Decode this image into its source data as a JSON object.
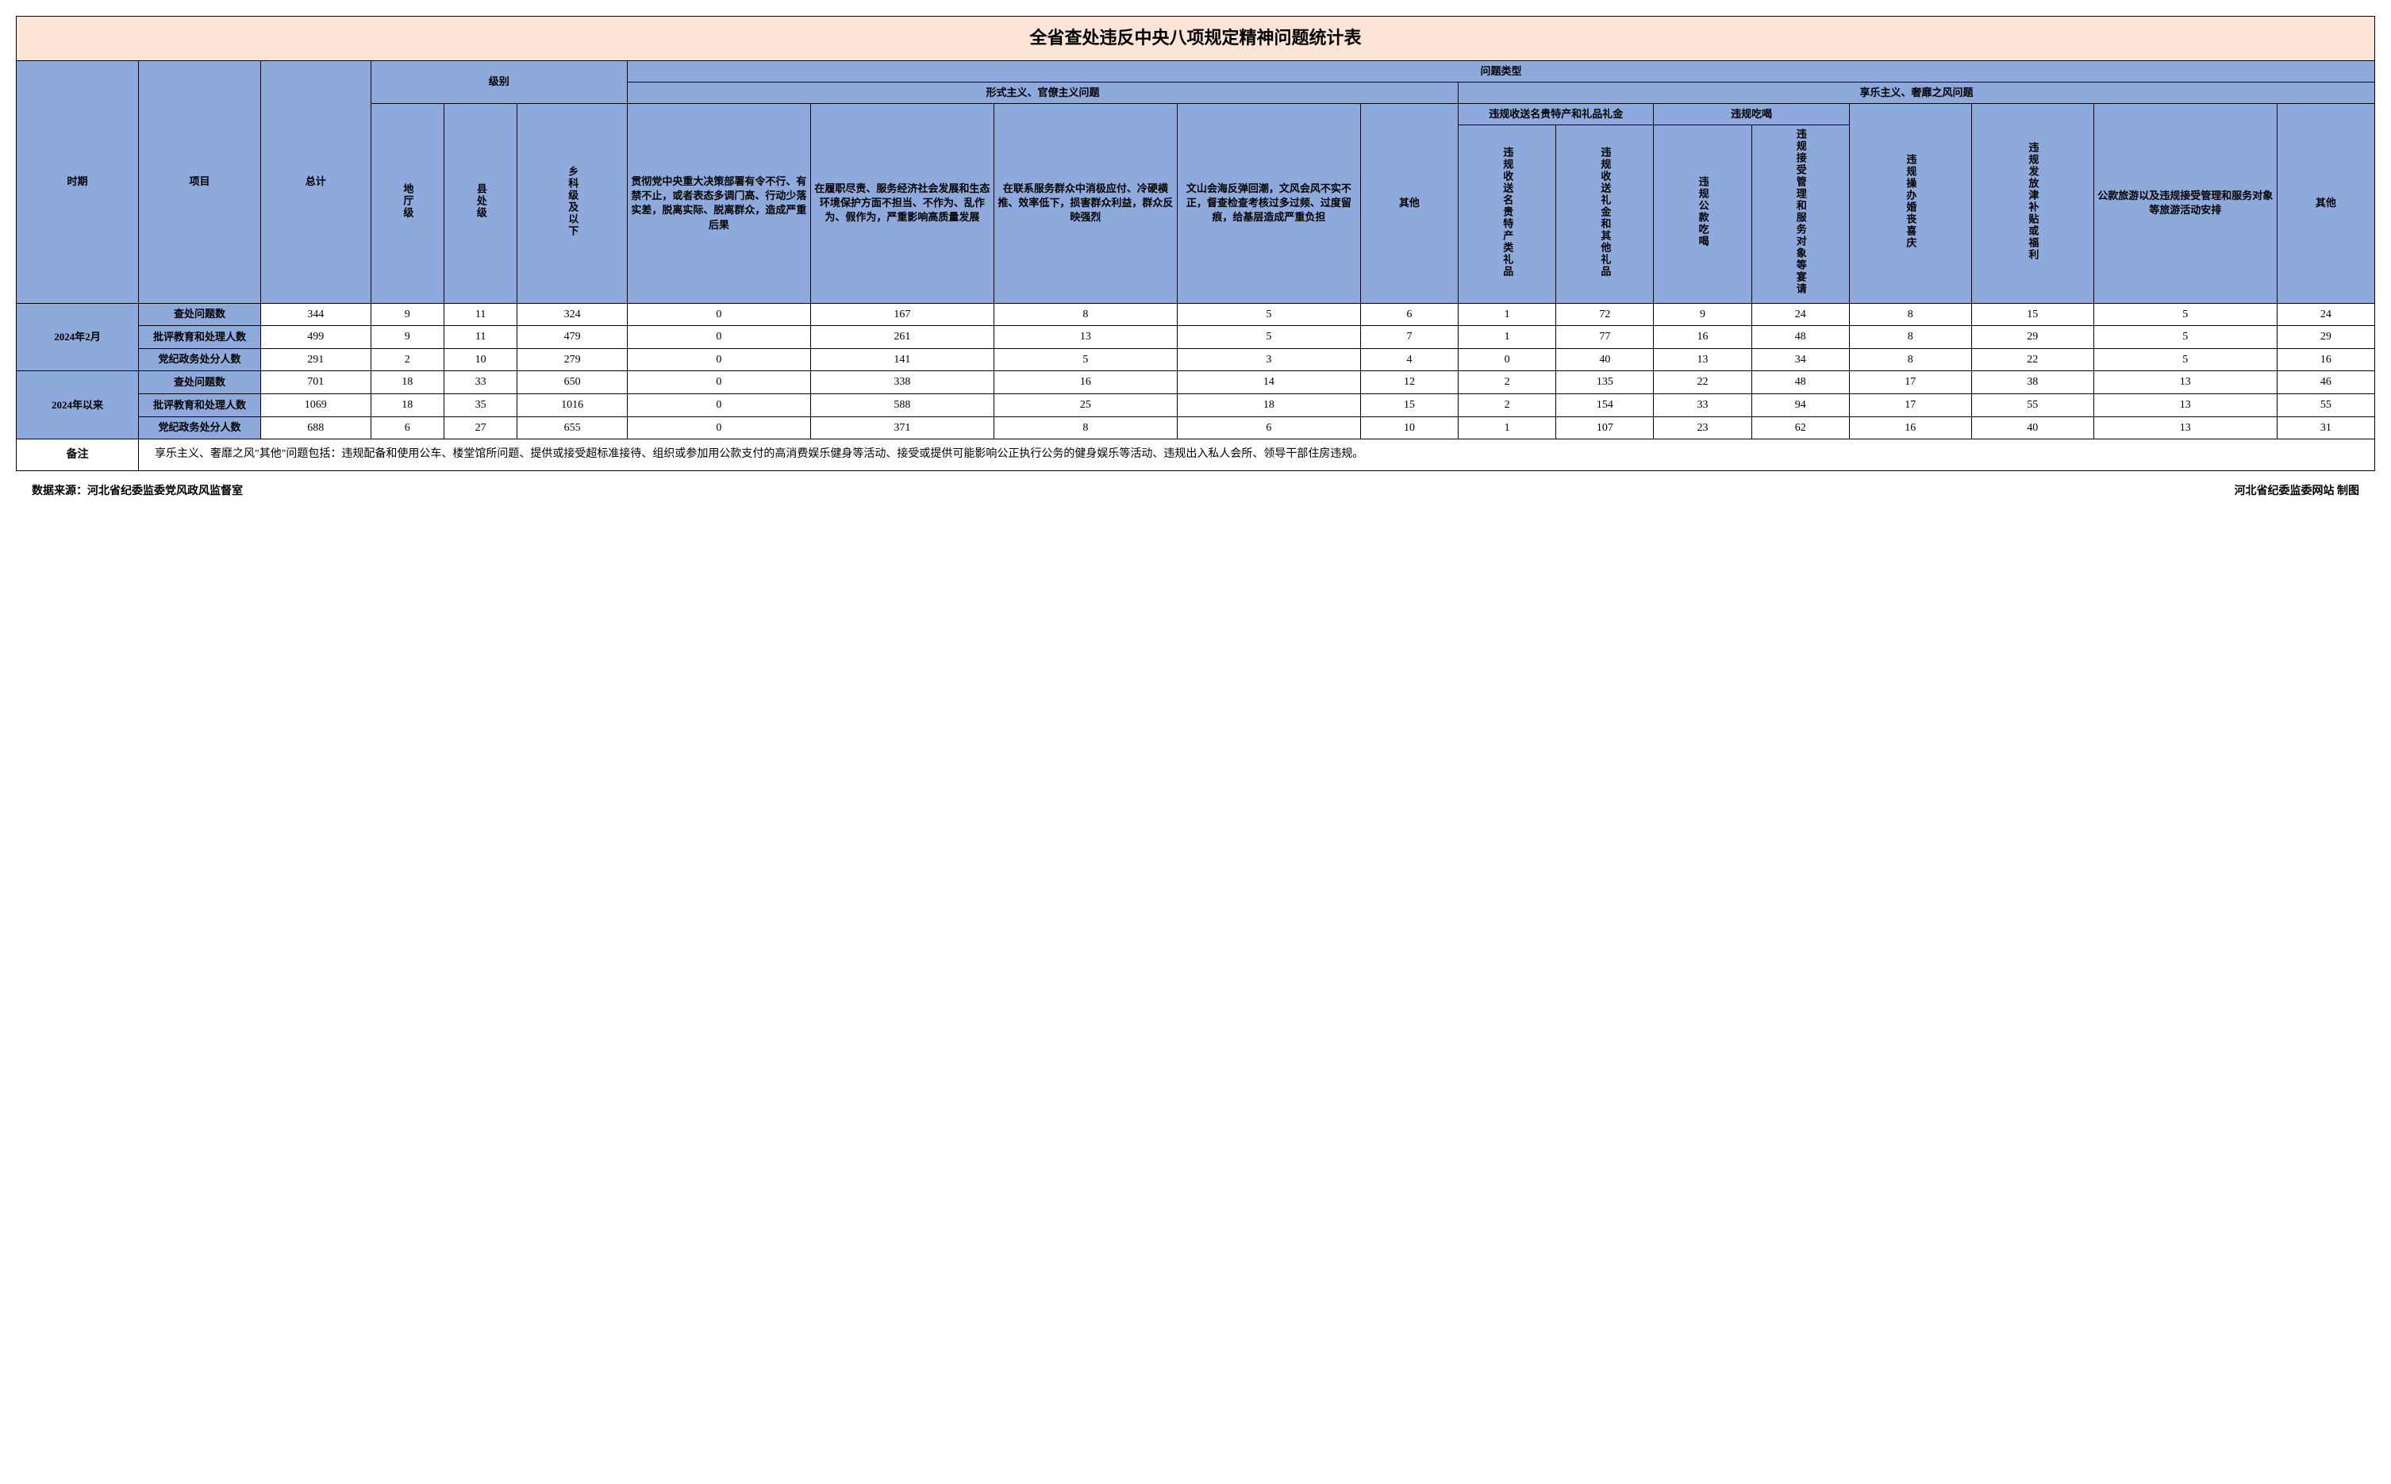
{
  "title": "全省查处违反中央八项规定精神问题统计表",
  "headers": {
    "period": "时期",
    "item": "项目",
    "total": "总计",
    "level_group": "级别",
    "level1": "地厅级",
    "level2": "县处级",
    "level3": "乡科级及以下",
    "problem_type": "问题类型",
    "formalism": "形式主义、官僚主义问题",
    "hedonism": "享乐主义、奢靡之风问题",
    "f1": "贯彻党中央重大决策部署有令不行、有禁不止，或者表态多调门高、行动少落实差，脱离实际、脱离群众，造成严重后果",
    "f2": "在履职尽责、服务经济社会发展和生态环境保护方面不担当、不作为、乱作为、假作为，严重影响高质量发展",
    "f3": "在联系服务群众中消极应付、冷硬横推、效率低下，损害群众利益，群众反映强烈",
    "f4": "文山会海反弹回潮，文风会风不实不正，督查检查考核过多过频、过度留痕，给基层造成严重负担",
    "f5": "其他",
    "h_gift_group": "违规收送名贵特产和礼品礼金",
    "h_gift1": "违规收送名贵特产类礼品",
    "h_gift2": "违规收送礼金和其他礼品",
    "h_eat_group": "违规吃喝",
    "h_eat1": "违规公款吃喝",
    "h_eat2": "违规接受管理和服务对象等宴请",
    "h3": "违规操办婚丧喜庆",
    "h4": "违规发放津补贴或福利",
    "h5": "公款旅游以及违规接受管理和服务对象等旅游活动安排",
    "h6": "其他"
  },
  "periods": [
    {
      "label": "2024年2月",
      "rows": [
        {
          "item": "查处问题数",
          "total": "344",
          "lv1": "9",
          "lv2": "11",
          "lv3": "324",
          "f1": "0",
          "f2": "167",
          "f3": "8",
          "f4": "5",
          "f5": "6",
          "hg1": "1",
          "hg2": "72",
          "he1": "9",
          "he2": "24",
          "h3": "8",
          "h4": "15",
          "h5": "5",
          "h6": "24"
        },
        {
          "item": "批评教育和处理人数",
          "total": "499",
          "lv1": "9",
          "lv2": "11",
          "lv3": "479",
          "f1": "0",
          "f2": "261",
          "f3": "13",
          "f4": "5",
          "f5": "7",
          "hg1": "1",
          "hg2": "77",
          "he1": "16",
          "he2": "48",
          "h3": "8",
          "h4": "29",
          "h5": "5",
          "h6": "29"
        },
        {
          "item": "党纪政务处分人数",
          "total": "291",
          "lv1": "2",
          "lv2": "10",
          "lv3": "279",
          "f1": "0",
          "f2": "141",
          "f3": "5",
          "f4": "3",
          "f5": "4",
          "hg1": "0",
          "hg2": "40",
          "he1": "13",
          "he2": "34",
          "h3": "8",
          "h4": "22",
          "h5": "5",
          "h6": "16"
        }
      ]
    },
    {
      "label": "2024年以来",
      "rows": [
        {
          "item": "查处问题数",
          "total": "701",
          "lv1": "18",
          "lv2": "33",
          "lv3": "650",
          "f1": "0",
          "f2": "338",
          "f3": "16",
          "f4": "14",
          "f5": "12",
          "hg1": "2",
          "hg2": "135",
          "he1": "22",
          "he2": "48",
          "h3": "17",
          "h4": "38",
          "h5": "13",
          "h6": "46"
        },
        {
          "item": "批评教育和处理人数",
          "total": "1069",
          "lv1": "18",
          "lv2": "35",
          "lv3": "1016",
          "f1": "0",
          "f2": "588",
          "f3": "25",
          "f4": "18",
          "f5": "15",
          "hg1": "2",
          "hg2": "154",
          "he1": "33",
          "he2": "94",
          "h3": "17",
          "h4": "55",
          "h5": "13",
          "h6": "55"
        },
        {
          "item": "党纪政务处分人数",
          "total": "688",
          "lv1": "6",
          "lv2": "27",
          "lv3": "655",
          "f1": "0",
          "f2": "371",
          "f3": "8",
          "f4": "6",
          "f5": "10",
          "hg1": "1",
          "hg2": "107",
          "he1": "23",
          "he2": "62",
          "h3": "16",
          "h4": "40",
          "h5": "13",
          "h6": "31"
        }
      ]
    }
  ],
  "note_label": "备注",
  "note_text": "享乐主义、奢靡之风\"其他\"问题包括：违规配备和使用公车、楼堂馆所问题、提供或接受超标准接待、组织或参加用公款支付的高消费娱乐健身等活动、接受或提供可能影响公正执行公务的健身娱乐等活动、违规出入私人会所、领导干部住房违规。",
  "footer_left": "数据来源：河北省纪委监委党风政风监督室",
  "footer_right": "河北省纪委监委网站  制图"
}
